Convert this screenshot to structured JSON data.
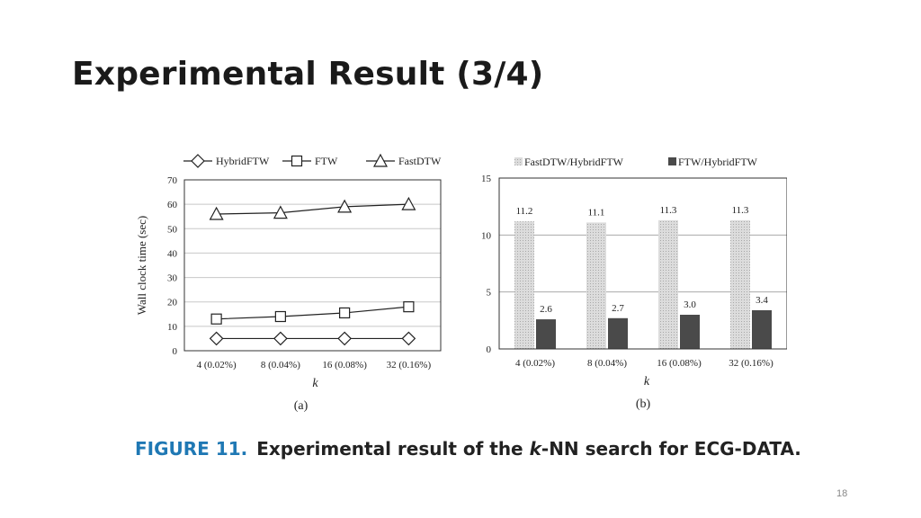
{
  "slide": {
    "title": "Experimental Result (3/4)",
    "page_number": "18"
  },
  "caption": {
    "figure_label": "FIGURE 11.",
    "text_before_k": "Experimental result of the ",
    "k": "k",
    "text_after_k": "-NN search for ECG-DATA."
  },
  "chart_data": [
    {
      "type": "line",
      "panel_label": "(a)",
      "xlabel": "k",
      "ylabel": "Wall clock time (sec)",
      "categories": [
        "4 (0.02%)",
        "8 (0.04%)",
        "16 (0.08%)",
        "32 (0.16%)"
      ],
      "ylim": [
        0,
        70
      ],
      "yticks": [
        0,
        10,
        20,
        30,
        40,
        50,
        60,
        70
      ],
      "grid": true,
      "legend_position": "top",
      "series": [
        {
          "name": "HybridFTW",
          "marker": "diamond",
          "values": [
            5,
            5,
            5,
            5
          ]
        },
        {
          "name": "FTW",
          "marker": "square",
          "values": [
            13,
            14,
            15.5,
            18
          ]
        },
        {
          "name": "FastDTW",
          "marker": "triangle",
          "values": [
            56,
            56.5,
            59,
            60
          ]
        }
      ]
    },
    {
      "type": "bar",
      "panel_label": "(b)",
      "xlabel": "k",
      "ylabel": "",
      "categories": [
        "4 (0.02%)",
        "8 (0.04%)",
        "16 (0.08%)",
        "32 (0.16%)"
      ],
      "ylim": [
        0,
        15
      ],
      "yticks": [
        0,
        5,
        10,
        15
      ],
      "grid": true,
      "legend_position": "top",
      "series": [
        {
          "name": "FastDTW/HybridFTW",
          "color": "#d2d2d2",
          "values": [
            11.2,
            11.1,
            11.3,
            11.3
          ],
          "labels": [
            "11.2",
            "11.1",
            "11.3",
            "11.3"
          ]
        },
        {
          "name": "FTW/HybridFTW",
          "color": "#4a4a4a",
          "values": [
            2.6,
            2.7,
            3.0,
            3.4
          ],
          "labels": [
            "2.6",
            "2.7",
            "3.0",
            "3.4"
          ]
        }
      ]
    }
  ]
}
